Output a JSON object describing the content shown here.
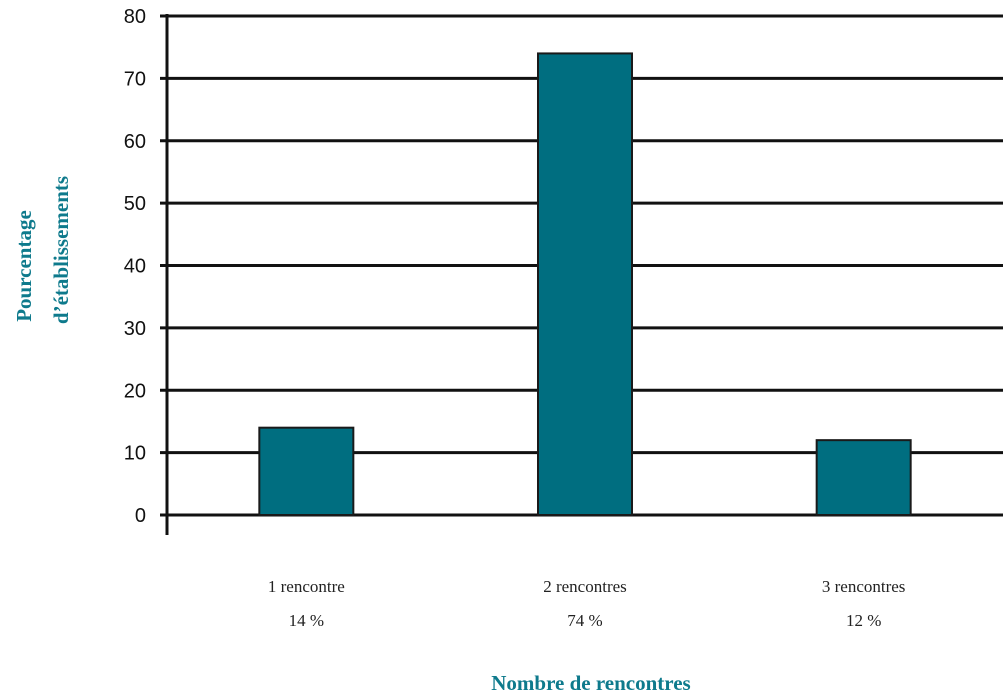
{
  "chart_data": {
    "type": "bar",
    "categories": [
      "1 rencontre",
      "2 rencontres",
      "3 rencontres"
    ],
    "value_labels": [
      "14 %",
      "74 %",
      "12 %"
    ],
    "values": [
      14,
      74,
      12
    ],
    "ylim": [
      0,
      80
    ],
    "yticks": [
      0,
      10,
      20,
      30,
      40,
      50,
      60,
      70,
      80
    ],
    "xlabel": "Nombre de rencontres",
    "ylabel": [
      "Pourcentage",
      "d’établissements"
    ],
    "grid": true,
    "legend": "none",
    "colors": {
      "bar": "#006E80",
      "bar_stroke": "#1a1a1a",
      "axis_title": "#0E7A8C",
      "grid": "#111111"
    }
  }
}
